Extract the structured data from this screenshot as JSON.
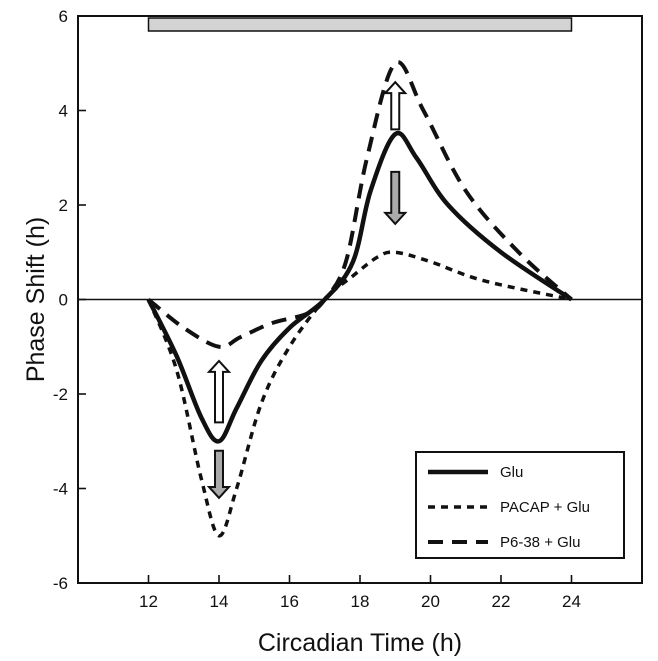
{
  "chart_data": {
    "type": "line",
    "xlabel": "Circadian Time (h)",
    "ylabel": "Phase Shift (h)",
    "xlim": [
      10,
      26
    ],
    "ylim": [
      -6,
      6
    ],
    "x_ticks": [
      12,
      14,
      16,
      18,
      20,
      22,
      24
    ],
    "y_ticks": [
      -6,
      -4,
      -2,
      0,
      2,
      4,
      6
    ],
    "x_tick_labels": [
      "12",
      "14",
      "16",
      "18",
      "20",
      "22",
      "24"
    ],
    "y_tick_labels": [
      "-6",
      "-4",
      "-2",
      "0",
      "2",
      "4",
      "6"
    ],
    "zero_line": true,
    "night_bar": {
      "x_start": 12,
      "x_end": 24,
      "color": "#d3d3d3"
    },
    "legend_position": "bottom-right",
    "series": [
      {
        "name": "Glu",
        "style": "solid",
        "points": [
          [
            12,
            0
          ],
          [
            12.8,
            -1.2
          ],
          [
            13.5,
            -2.5
          ],
          [
            14,
            -3
          ],
          [
            14.5,
            -2.3
          ],
          [
            15.2,
            -1.3
          ],
          [
            16,
            -0.6
          ],
          [
            17,
            0
          ],
          [
            17.8,
            0.8
          ],
          [
            18.3,
            2.3
          ],
          [
            19,
            3.5
          ],
          [
            19.6,
            3
          ],
          [
            20.5,
            2
          ],
          [
            22,
            1
          ],
          [
            24,
            0
          ]
        ]
      },
      {
        "name": "PACAP + Glu",
        "style": "short-dash",
        "points": [
          [
            12,
            0
          ],
          [
            12.8,
            -1.5
          ],
          [
            13.5,
            -3.8
          ],
          [
            14,
            -5
          ],
          [
            14.5,
            -4
          ],
          [
            15.2,
            -2.2
          ],
          [
            16,
            -1
          ],
          [
            17,
            0
          ],
          [
            17.8,
            0.5
          ],
          [
            18.5,
            0.9
          ],
          [
            19,
            1
          ],
          [
            20,
            0.8
          ],
          [
            21.5,
            0.4
          ],
          [
            24,
            0
          ]
        ]
      },
      {
        "name": "P6-38 + Glu",
        "style": "long-dash",
        "points": [
          [
            12,
            0
          ],
          [
            13,
            -0.6
          ],
          [
            14,
            -1
          ],
          [
            14.6,
            -0.8
          ],
          [
            15.5,
            -0.5
          ],
          [
            16.5,
            -0.3
          ],
          [
            17,
            0
          ],
          [
            17.6,
            0.8
          ],
          [
            18.2,
            3
          ],
          [
            19,
            5
          ],
          [
            19.8,
            4
          ],
          [
            21,
            2.3
          ],
          [
            22.5,
            1
          ],
          [
            24,
            0
          ]
        ]
      }
    ],
    "arrows": [
      {
        "x": 14,
        "y_from": -2.6,
        "y_to": -1.3,
        "direction": "up"
      },
      {
        "x": 14,
        "y_from": -3.2,
        "y_to": -4.2,
        "direction": "down"
      },
      {
        "x": 19,
        "y_from": 3.6,
        "y_to": 4.6,
        "direction": "up"
      },
      {
        "x": 19,
        "y_from": 2.7,
        "y_to": 1.6,
        "direction": "down"
      }
    ]
  }
}
